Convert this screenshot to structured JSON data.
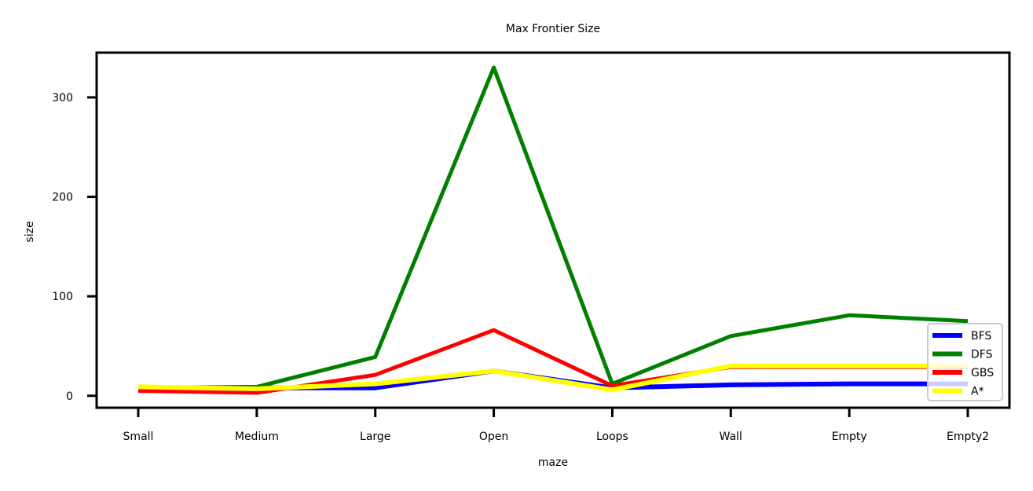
{
  "chart_data": {
    "type": "line",
    "title": "Max Frontier Size",
    "xlabel": "maze",
    "ylabel": "size",
    "categories": [
      "Small",
      "Medium",
      "Large",
      "Open",
      "Loops",
      "Wall",
      "Empty",
      "Empty2"
    ],
    "ylim": [
      -12,
      345
    ],
    "yticks": [
      0,
      100,
      200,
      300
    ],
    "grid": false,
    "legend_position": "lower-right",
    "series": [
      {
        "name": "BFS",
        "color": "#0000ff",
        "values": [
          8,
          8,
          8,
          25,
          8,
          11,
          12,
          12
        ]
      },
      {
        "name": "DFS",
        "color": "#008000",
        "values": [
          8,
          9,
          39,
          330,
          12,
          60,
          81,
          75
        ]
      },
      {
        "name": "GBS",
        "color": "#ff0000",
        "values": [
          5,
          3,
          21,
          66,
          10,
          29,
          29,
          29
        ]
      },
      {
        "name": "A*",
        "color": "#ffff00",
        "values": [
          9,
          7,
          12,
          25,
          6,
          30,
          30,
          30
        ]
      }
    ]
  }
}
